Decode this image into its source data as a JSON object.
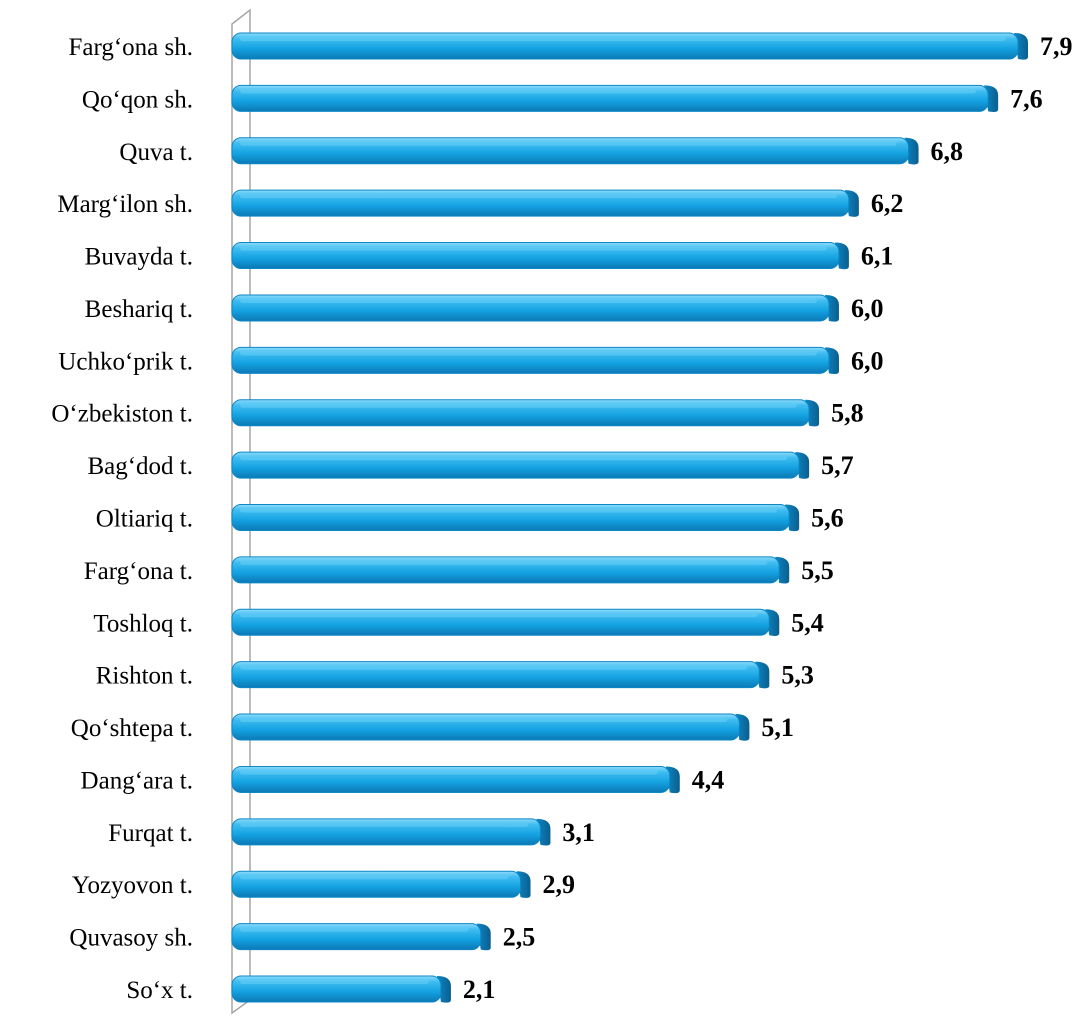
{
  "chart_data": {
    "type": "bar",
    "orientation": "horizontal",
    "title": "",
    "xlabel": "",
    "ylabel": "",
    "xlim": [
      0,
      7.9
    ],
    "grid": false,
    "legend": "none",
    "bar_color": "#1aa6e4",
    "bar_highlight_color": "#5fcaf5",
    "bar_shadow_color": "#0b6ea3",
    "axis_color": "#a6a6a6",
    "categories": [
      "Farg‘ona sh.",
      "Qo‘qon sh.",
      "Quva t.",
      "Marg‘ilon sh.",
      "Buvayda t.",
      "Beshariq t.",
      "Uchko‘prik t.",
      "O‘zbekiston t.",
      "Bag‘dod t.",
      "Oltiariq t.",
      "Farg‘ona t.",
      "Toshloq t.",
      "Rishton t.",
      "Qo‘shtepa t.",
      "Dang‘ara t.",
      "Furqat t.",
      "Yozyovon t.",
      "Quvasoy sh.",
      "So‘x t."
    ],
    "values": [
      7.9,
      7.6,
      6.8,
      6.2,
      6.1,
      6.0,
      6.0,
      5.8,
      5.7,
      5.6,
      5.5,
      5.4,
      5.3,
      5.1,
      4.4,
      3.1,
      2.9,
      2.5,
      2.1
    ],
    "data_labels": [
      "7,9",
      "7,6",
      "6,8",
      "6,2",
      "6,1",
      "6,0",
      "6,0",
      "5,8",
      "5,7",
      "5,6",
      "5,5",
      "5,4",
      "5,3",
      "5,1",
      "4,4",
      "3,1",
      "2,9",
      "2,5",
      "2,1"
    ]
  }
}
